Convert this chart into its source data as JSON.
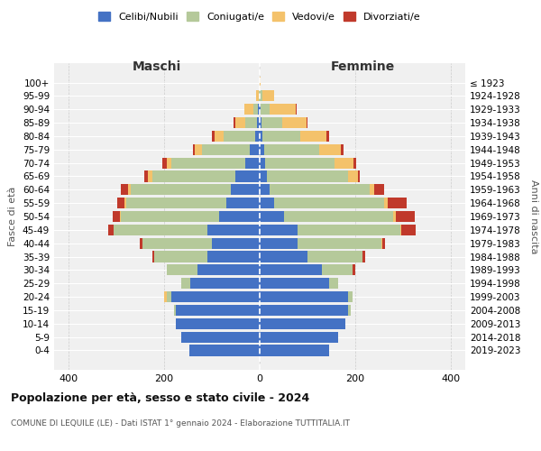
{
  "age_groups": [
    "0-4",
    "5-9",
    "10-14",
    "15-19",
    "20-24",
    "25-29",
    "30-34",
    "35-39",
    "40-44",
    "45-49",
    "50-54",
    "55-59",
    "60-64",
    "65-69",
    "70-74",
    "75-79",
    "80-84",
    "85-89",
    "90-94",
    "95-99",
    "100+"
  ],
  "birth_years": [
    "2019-2023",
    "2014-2018",
    "2009-2013",
    "2004-2008",
    "1999-2003",
    "1994-1998",
    "1989-1993",
    "1984-1988",
    "1979-1983",
    "1974-1978",
    "1969-1973",
    "1964-1968",
    "1959-1963",
    "1954-1958",
    "1949-1953",
    "1944-1948",
    "1939-1943",
    "1934-1938",
    "1929-1933",
    "1924-1928",
    "≤ 1923"
  ],
  "colors": {
    "celibe": "#4472c4",
    "coniugato": "#b5c99a",
    "vedovo": "#f4c26b",
    "divorziato": "#c0392b"
  },
  "maschi": {
    "celibe": [
      148,
      165,
      175,
      175,
      185,
      145,
      130,
      110,
      100,
      110,
      85,
      70,
      60,
      50,
      30,
      20,
      10,
      5,
      3,
      0,
      0
    ],
    "coniugato": [
      0,
      0,
      0,
      5,
      10,
      20,
      65,
      110,
      145,
      195,
      205,
      210,
      210,
      175,
      155,
      100,
      65,
      25,
      10,
      2,
      0
    ],
    "vedovo": [
      0,
      0,
      0,
      0,
      5,
      0,
      0,
      0,
      0,
      0,
      2,
      3,
      5,
      8,
      10,
      15,
      20,
      20,
      20,
      5,
      0
    ],
    "divorziato": [
      0,
      0,
      0,
      0,
      0,
      0,
      0,
      5,
      5,
      12,
      15,
      15,
      15,
      8,
      8,
      5,
      5,
      5,
      0,
      0,
      0
    ]
  },
  "femmine": {
    "celibe": [
      145,
      165,
      180,
      185,
      185,
      145,
      130,
      100,
      80,
      80,
      50,
      30,
      20,
      15,
      12,
      10,
      5,
      3,
      2,
      0,
      0
    ],
    "coniugato": [
      0,
      0,
      0,
      5,
      10,
      20,
      65,
      115,
      175,
      215,
      230,
      230,
      210,
      170,
      145,
      115,
      80,
      45,
      18,
      5,
      0
    ],
    "vedovo": [
      0,
      0,
      0,
      0,
      0,
      0,
      0,
      0,
      2,
      2,
      5,
      8,
      10,
      20,
      40,
      45,
      55,
      50,
      55,
      25,
      2
    ],
    "divorziato": [
      0,
      0,
      0,
      0,
      0,
      0,
      5,
      5,
      5,
      30,
      40,
      40,
      20,
      5,
      5,
      5,
      5,
      2,
      2,
      0,
      0
    ]
  },
  "title": "Popolazione per età, sesso e stato civile - 2024",
  "subtitle": "COMUNE DI LEQUILE (LE) - Dati ISTAT 1° gennaio 2024 - Elaborazione TUTTITALIA.IT",
  "xlabel_left": "Maschi",
  "xlabel_right": "Femmine",
  "ylabel_left": "Fasce di età",
  "ylabel_right": "Anni di nascita",
  "legend_labels": [
    "Celibi/Nubili",
    "Coniugati/e",
    "Vedovi/e",
    "Divorziati/e"
  ],
  "xlim": 430,
  "background_color": "#ffffff",
  "plot_bg_color": "#f0f0f0",
  "grid_color": "#cccccc"
}
